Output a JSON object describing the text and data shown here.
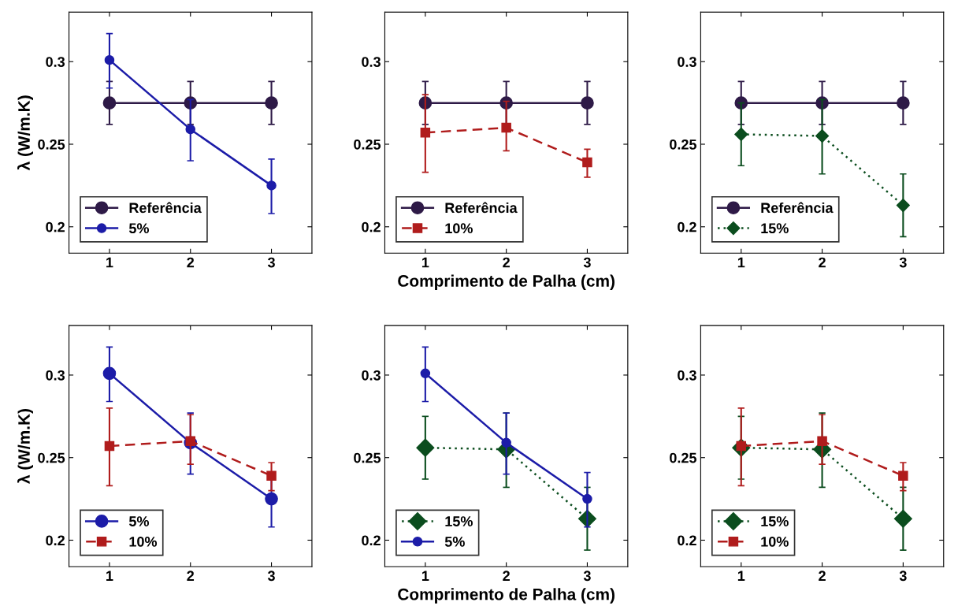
{
  "chart_data": [
    {
      "type": "line",
      "x": [
        1,
        2,
        3
      ],
      "xlim": [
        0.5,
        3.5
      ],
      "xticks": [
        1,
        2,
        3
      ],
      "ylim": [
        0.184,
        0.33
      ],
      "yticks": [
        0.2,
        0.25,
        0.3
      ],
      "ylabel": "λ (W/m.K)",
      "legend": "bottom left",
      "grid": false,
      "series": [
        {
          "name": "Referência",
          "color": "#2e1a47",
          "marker": "circle",
          "line_style": "solid",
          "values": [
            0.275,
            0.275,
            0.275
          ],
          "errors": [
            [
              0.262,
              0.288
            ],
            [
              0.262,
              0.288
            ],
            [
              0.262,
              0.288
            ]
          ]
        },
        {
          "name": "5%",
          "color": "#1c1ca8",
          "marker": "circle",
          "line_style": "solid",
          "values": [
            0.301,
            0.259,
            0.225
          ],
          "errors": [
            [
              0.284,
              0.317
            ],
            [
              0.24,
              0.277
            ],
            [
              0.208,
              0.241
            ]
          ]
        }
      ]
    },
    {
      "type": "line",
      "x": [
        1,
        2,
        3
      ],
      "xlim": [
        0.5,
        3.5
      ],
      "xticks": [
        1,
        2,
        3
      ],
      "ylim": [
        0.184,
        0.33
      ],
      "yticks": [
        0.2,
        0.25,
        0.3
      ],
      "xlabel": "Comprimento de Palha (cm)",
      "legend": "bottom left",
      "grid": false,
      "series": [
        {
          "name": "Referência",
          "color": "#2e1a47",
          "marker": "circle",
          "line_style": "solid",
          "values": [
            0.275,
            0.275,
            0.275
          ],
          "errors": [
            [
              0.262,
              0.288
            ],
            [
              0.262,
              0.288
            ],
            [
              0.262,
              0.288
            ]
          ]
        },
        {
          "name": "10%",
          "color": "#b01c1c",
          "marker": "square",
          "line_style": "dashed",
          "values": [
            0.257,
            0.26,
            0.239
          ],
          "errors": [
            [
              0.233,
              0.28
            ],
            [
              0.246,
              0.276
            ],
            [
              0.23,
              0.247
            ]
          ]
        }
      ]
    },
    {
      "type": "line",
      "x": [
        1,
        2,
        3
      ],
      "xlim": [
        0.5,
        3.5
      ],
      "xticks": [
        1,
        2,
        3
      ],
      "ylim": [
        0.184,
        0.33
      ],
      "yticks": [
        0.2,
        0.25,
        0.3
      ],
      "legend": "bottom left",
      "grid": false,
      "series": [
        {
          "name": "Referência",
          "color": "#2e1a47",
          "marker": "circle",
          "line_style": "solid",
          "values": [
            0.275,
            0.275,
            0.275
          ],
          "errors": [
            [
              0.262,
              0.288
            ],
            [
              0.262,
              0.288
            ],
            [
              0.262,
              0.288
            ]
          ]
        },
        {
          "name": "15%",
          "color": "#0b4d1e",
          "marker": "diamond",
          "line_style": "dotted",
          "values": [
            0.256,
            0.255,
            0.213
          ],
          "errors": [
            [
              0.237,
              0.275
            ],
            [
              0.232,
              0.277
            ],
            [
              0.194,
              0.232
            ]
          ]
        }
      ]
    },
    {
      "type": "line",
      "x": [
        1,
        2,
        3
      ],
      "xlim": [
        0.5,
        3.5
      ],
      "xticks": [
        1,
        2,
        3
      ],
      "ylim": [
        0.184,
        0.33
      ],
      "yticks": [
        0.2,
        0.25,
        0.3
      ],
      "ylabel": "λ (W/m.K)",
      "legend": "bottom left",
      "grid": false,
      "series": [
        {
          "name": "5%",
          "color": "#1c1ca8",
          "marker": "circle",
          "line_style": "solid",
          "values": [
            0.301,
            0.259,
            0.225
          ],
          "errors": [
            [
              0.284,
              0.317
            ],
            [
              0.24,
              0.277
            ],
            [
              0.208,
              0.241
            ]
          ]
        },
        {
          "name": "10%",
          "color": "#b01c1c",
          "marker": "square",
          "line_style": "dashed",
          "values": [
            0.257,
            0.26,
            0.239
          ],
          "errors": [
            [
              0.233,
              0.28
            ],
            [
              0.246,
              0.276
            ],
            [
              0.23,
              0.247
            ]
          ]
        }
      ]
    },
    {
      "type": "line",
      "x": [
        1,
        2,
        3
      ],
      "xlim": [
        0.5,
        3.5
      ],
      "xticks": [
        1,
        2,
        3
      ],
      "ylim": [
        0.184,
        0.33
      ],
      "yticks": [
        0.2,
        0.25,
        0.3
      ],
      "xlabel": "Comprimento de Palha (cm)",
      "legend": "bottom left",
      "grid": false,
      "series": [
        {
          "name": "15%",
          "color": "#0b4d1e",
          "marker": "diamond",
          "line_style": "dotted",
          "values": [
            0.256,
            0.255,
            0.213
          ],
          "errors": [
            [
              0.237,
              0.275
            ],
            [
              0.232,
              0.277
            ],
            [
              0.194,
              0.232
            ]
          ]
        },
        {
          "name": "5%",
          "color": "#1c1ca8",
          "marker": "circle",
          "line_style": "solid",
          "values": [
            0.301,
            0.259,
            0.225
          ],
          "errors": [
            [
              0.284,
              0.317
            ],
            [
              0.24,
              0.277
            ],
            [
              0.208,
              0.241
            ]
          ]
        }
      ]
    },
    {
      "type": "line",
      "x": [
        1,
        2,
        3
      ],
      "xlim": [
        0.5,
        3.5
      ],
      "xticks": [
        1,
        2,
        3
      ],
      "ylim": [
        0.184,
        0.33
      ],
      "yticks": [
        0.2,
        0.25,
        0.3
      ],
      "legend": "bottom left",
      "grid": false,
      "series": [
        {
          "name": "15%",
          "color": "#0b4d1e",
          "marker": "diamond",
          "line_style": "dotted",
          "values": [
            0.256,
            0.255,
            0.213
          ],
          "errors": [
            [
              0.237,
              0.275
            ],
            [
              0.232,
              0.277
            ],
            [
              0.194,
              0.232
            ]
          ]
        },
        {
          "name": "10%",
          "color": "#b01c1c",
          "marker": "square",
          "line_style": "dashed",
          "values": [
            0.257,
            0.26,
            0.239
          ],
          "errors": [
            [
              0.233,
              0.28
            ],
            [
              0.246,
              0.276
            ],
            [
              0.23,
              0.247
            ]
          ]
        }
      ]
    }
  ]
}
